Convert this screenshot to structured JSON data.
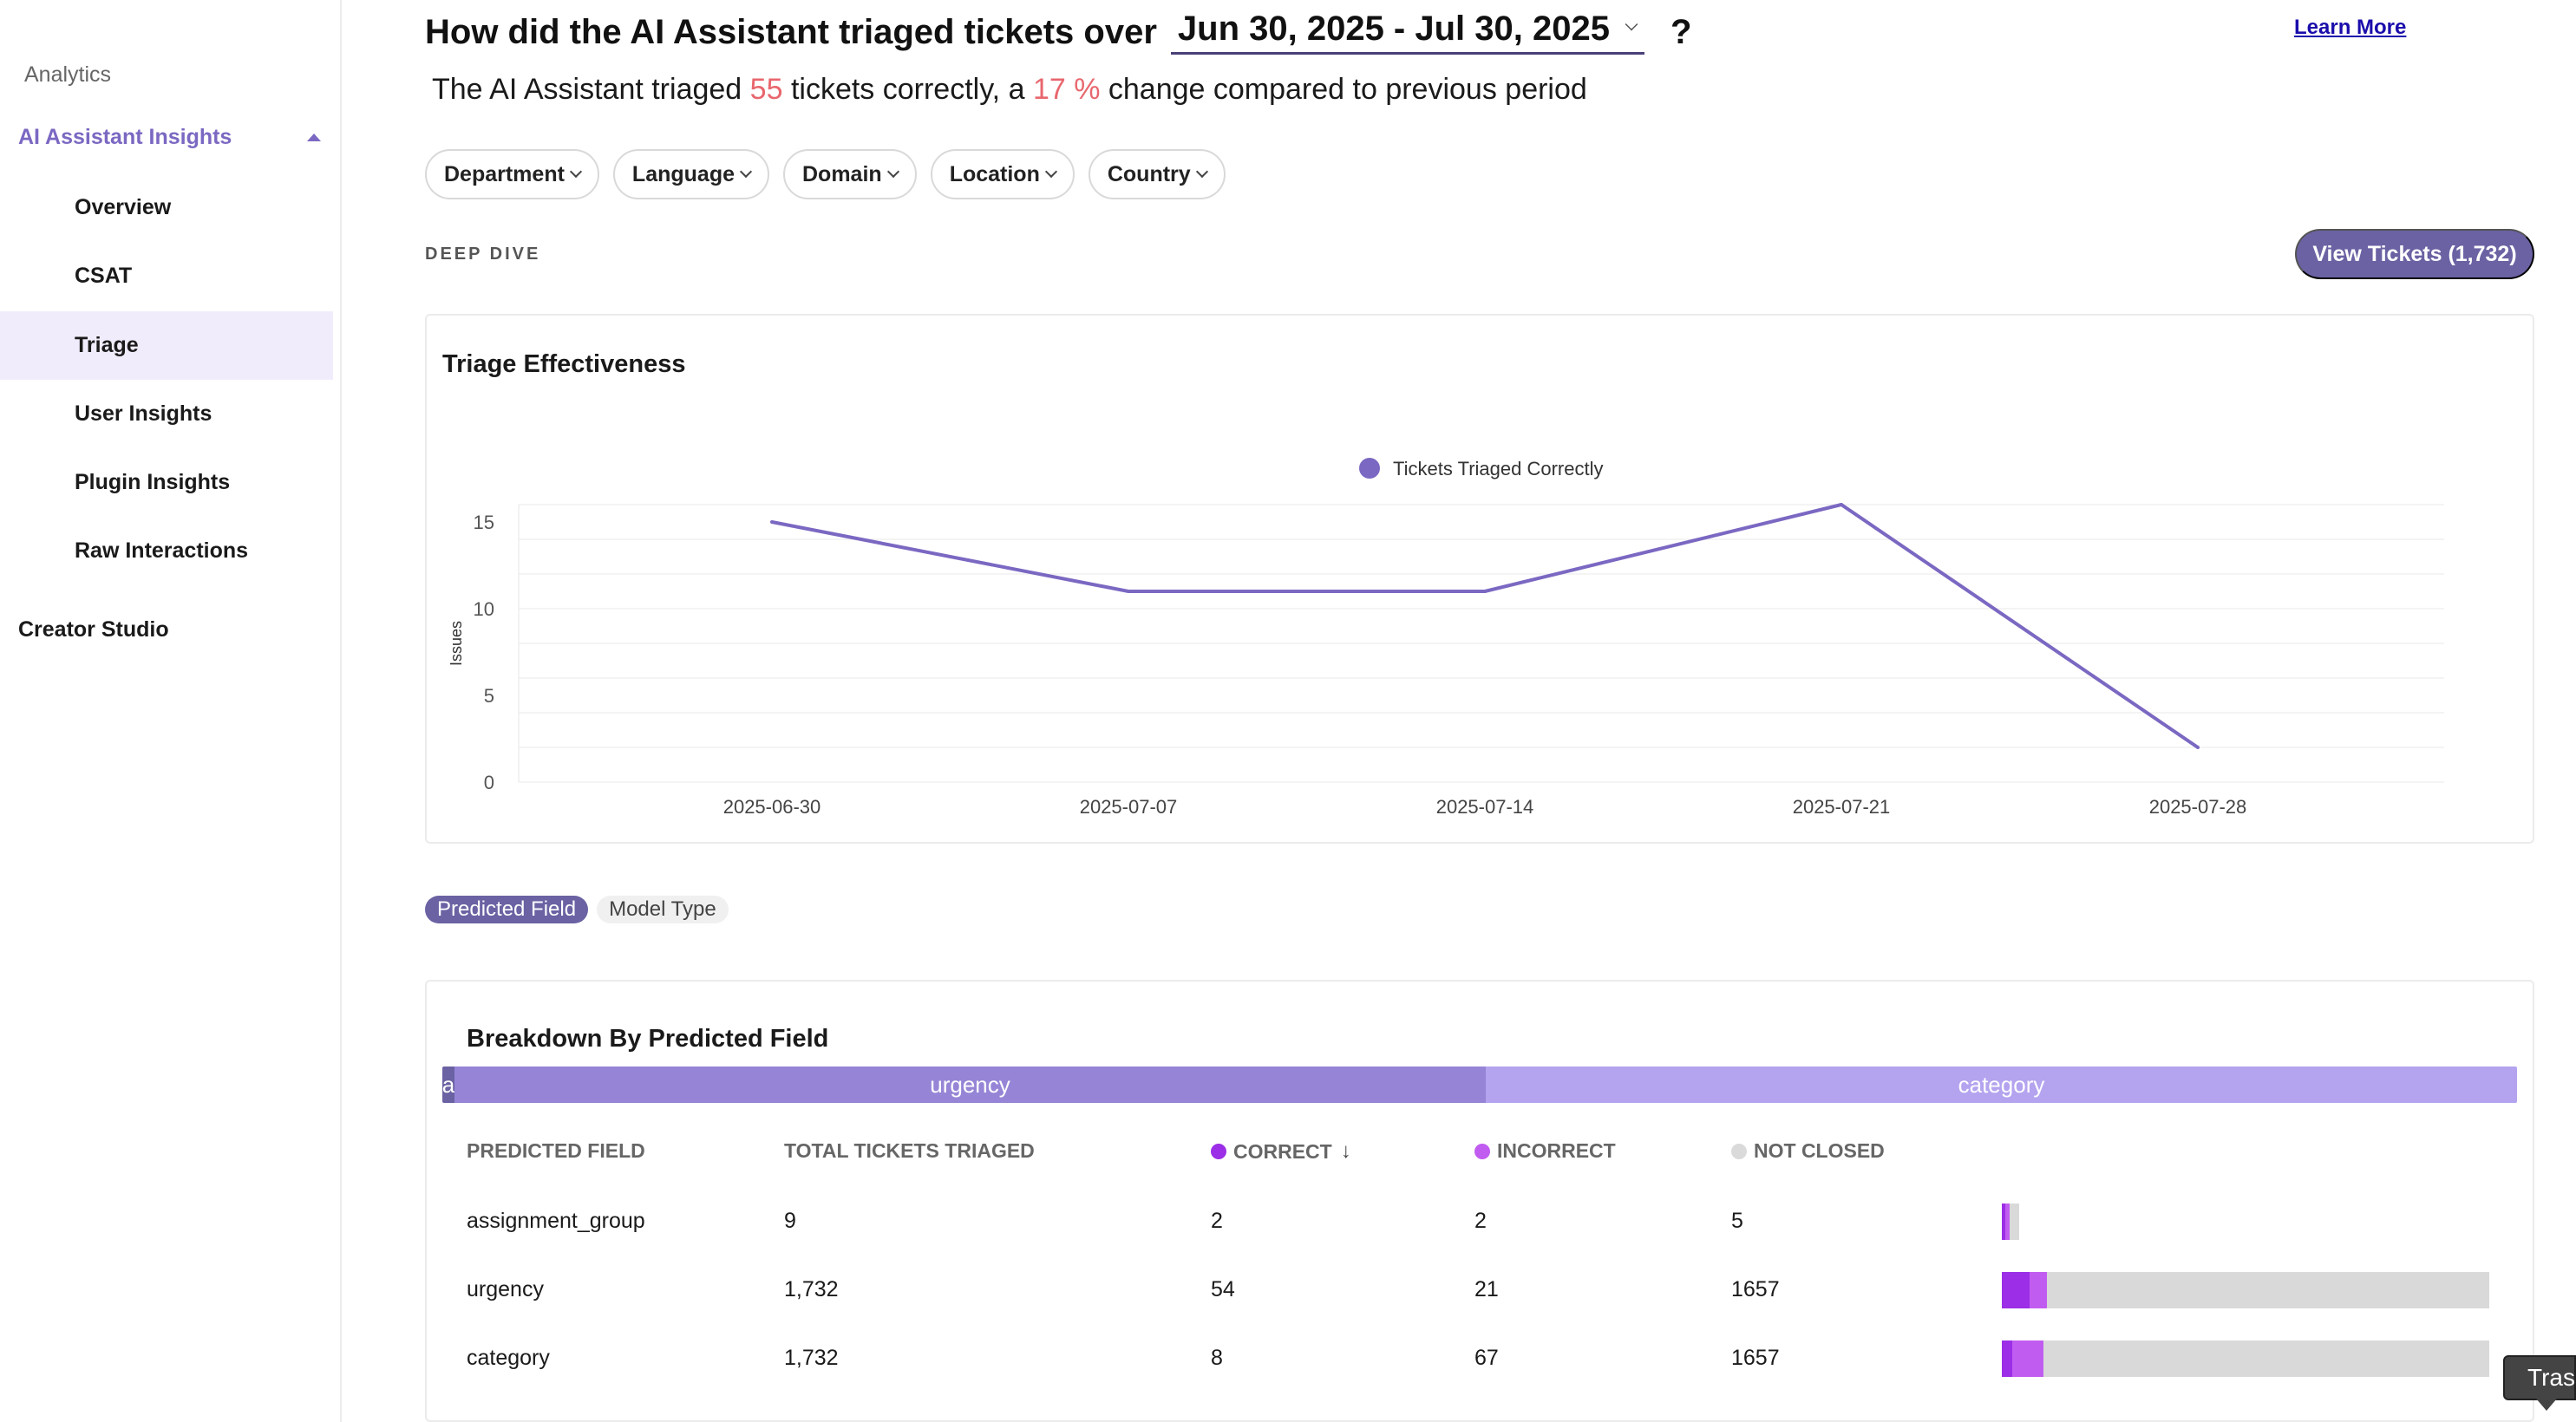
{
  "sidebar": {
    "section_label": "Analytics",
    "parent_label": "AI Assistant Insights",
    "items": [
      {
        "label": "Overview"
      },
      {
        "label": "CSAT"
      },
      {
        "label": "Triage"
      },
      {
        "label": "User Insights"
      },
      {
        "label": "Plugin Insights"
      },
      {
        "label": "Raw Interactions"
      }
    ],
    "active_item": "Triage",
    "bottom_label": "Creator Studio"
  },
  "header": {
    "headline": "How did the AI Assistant triaged tickets over",
    "date_range": "Jun 30, 2025 - Jul 30, 2025",
    "question_mark": "?",
    "learn_more": "Learn More"
  },
  "summary": {
    "prefix": "The AI Assistant triaged",
    "count": "55",
    "middle": "tickets correctly, a",
    "change": "17 %",
    "suffix": "change compared to previous period"
  },
  "filters": [
    "Department",
    "Language",
    "Domain",
    "Location",
    "Country"
  ],
  "deep_dive": {
    "label": "DEEP DIVE",
    "view_tickets": "View Tickets (1,732)"
  },
  "chart_data": {
    "type": "line",
    "title": "Triage Effectiveness",
    "ylabel": "Issues",
    "xlabel": "",
    "x": [
      "2025-06-30",
      "2025-07-07",
      "2025-07-14",
      "2025-07-21",
      "2025-07-28"
    ],
    "series": [
      {
        "name": "Tickets Triaged Correctly",
        "values": [
          15,
          11,
          11,
          16,
          2
        ],
        "color": "#7b68c2"
      }
    ],
    "ylim": [
      0,
      16
    ],
    "yticks": [
      0,
      5,
      10,
      15
    ],
    "grid": true,
    "legend": "top-center"
  },
  "toggles": {
    "active": "Predicted Field",
    "inactive": "Model Type"
  },
  "breakdown": {
    "title": "Breakdown By Predicted Field",
    "stack": [
      {
        "label": "a",
        "value": 9,
        "color": "#6a62a3"
      },
      {
        "label": "urgency",
        "value": 1732,
        "color": "#9685d6"
      },
      {
        "label": "category",
        "value": 1732,
        "color": "#b4a3ef"
      }
    ],
    "columns": {
      "field": "PREDICTED FIELD",
      "total": "TOTAL TICKETS TRIAGED",
      "correct": "CORRECT",
      "incorrect": "INCORRECT",
      "not_closed": "NOT CLOSED"
    },
    "colors": {
      "correct": "#9b2ee6",
      "incorrect": "#c15cf0",
      "not_closed": "#dadada"
    },
    "rows": [
      {
        "field": "assignment_group",
        "total": "9",
        "correct": "2",
        "incorrect": "2",
        "not_closed": "5",
        "correct_n": 2,
        "incorrect_n": 2,
        "not_closed_n": 5,
        "total_n": 9
      },
      {
        "field": "urgency",
        "total": "1,732",
        "correct": "54",
        "incorrect": "21",
        "not_closed": "1657",
        "correct_n": 54,
        "incorrect_n": 21,
        "not_closed_n": 1657,
        "total_n": 1732
      },
      {
        "field": "category",
        "total": "1,732",
        "correct": "8",
        "incorrect": "67",
        "not_closed": "1657",
        "correct_n": 8,
        "incorrect_n": 67,
        "not_closed_n": 1657,
        "total_n": 1732
      }
    ]
  },
  "tooltip": {
    "text": "Tras"
  }
}
